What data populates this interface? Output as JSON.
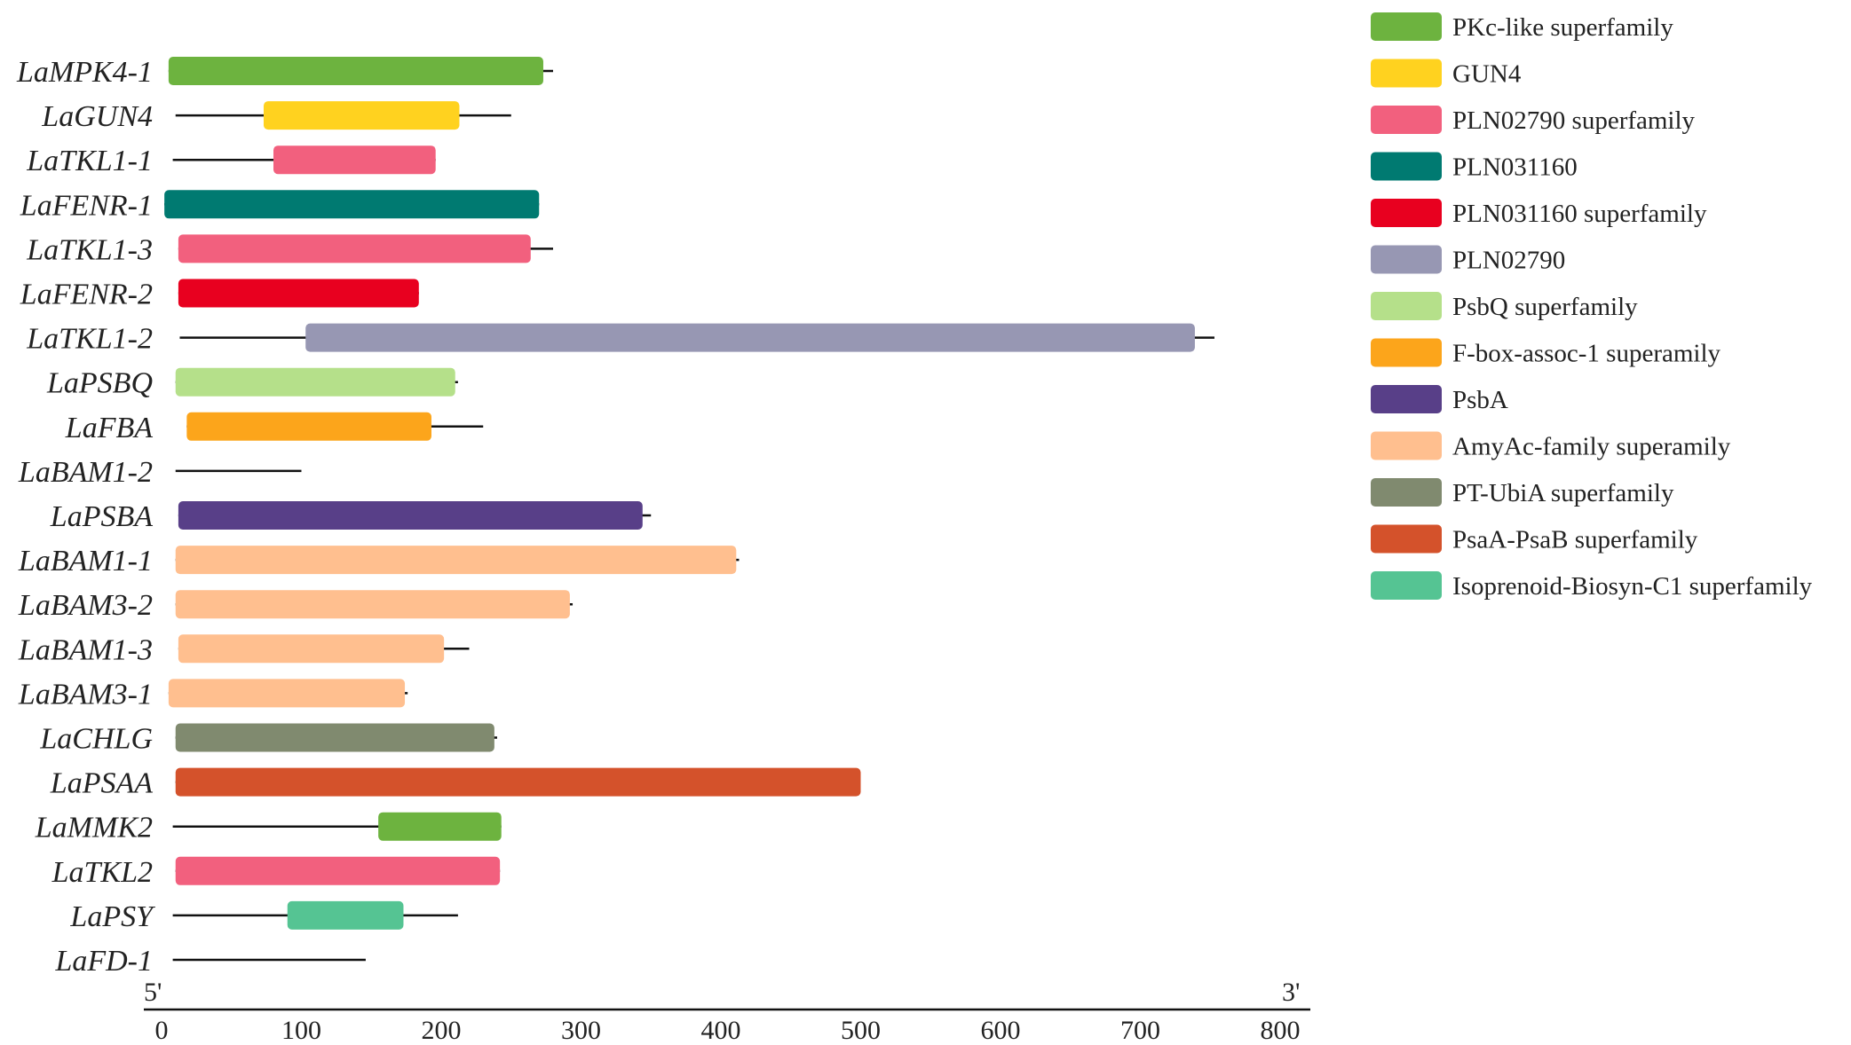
{
  "colors": {
    "PKc-like superfamily": "#6db33f",
    "GUN4": "#ffd21f",
    "PLN02790 superfamily": "#f2607e",
    "PLN031160": "#007a71",
    "PLN031160 superfamily": "#e8001f",
    "PLN02790": "#9797b3",
    "PsbQ superfamily": "#b5e08a",
    "F-box-assoc-1 superamily": "#fca51b",
    "PsbA": "#583f88",
    "AmyAc-family superamily": "#ffbf8f",
    "PT-UbiA superfamily": "#808a6f",
    "PsaA-PsaB superfamily": "#d4522b",
    "Isoprenoid-Biosyn-C1 superfamily": "#55c493"
  },
  "legend": [
    {
      "label": "PKc-like superfamily",
      "domain": "PKc-like superfamily"
    },
    {
      "label": "GUN4",
      "domain": "GUN4"
    },
    {
      "label": "PLN02790 superfamily",
      "domain": "PLN02790 superfamily"
    },
    {
      "label": "PLN031160",
      "domain": "PLN031160"
    },
    {
      "label": "PLN031160  superfamily",
      "domain": "PLN031160 superfamily"
    },
    {
      "label": "PLN02790",
      "domain": "PLN02790"
    },
    {
      "label": "PsbQ superfamily",
      "domain": "PsbQ superfamily"
    },
    {
      "label": "F-box-assoc-1 superamily",
      "domain": "F-box-assoc-1 superamily"
    },
    {
      "label": "PsbA",
      "domain": "PsbA"
    },
    {
      "label": "AmyAc-family superamily",
      "domain": "AmyAc-family superamily"
    },
    {
      "label": "PT-UbiA superfamily",
      "domain": "PT-UbiA superfamily"
    },
    {
      "label": "PsaA-PsaB superfamily",
      "domain": "PsaA-PsaB superfamily"
    },
    {
      "label": "Isoprenoid-Biosyn-C1 superfamily",
      "domain": "Isoprenoid-Biosyn-C1 superfamily"
    }
  ],
  "genes": [
    {
      "name": "LaMPK4-1",
      "line_start": 5,
      "line_end": 280,
      "domain_start": 5,
      "domain_end": 273,
      "domain": "PKc-like superfamily"
    },
    {
      "name": "LaGUN4",
      "line_start": 10,
      "line_end": 250,
      "domain_start": 73,
      "domain_end": 213,
      "domain": "GUN4"
    },
    {
      "name": "LaTKL1-1",
      "line_start": 8,
      "line_end": 196,
      "domain_start": 80,
      "domain_end": 196,
      "domain": "PLN02790 superfamily"
    },
    {
      "name": "LaFENR-1",
      "line_start": 2,
      "line_end": 270,
      "domain_start": 2,
      "domain_end": 270,
      "domain": "PLN031160"
    },
    {
      "name": "LaTKL1-3",
      "line_start": 12,
      "line_end": 280,
      "domain_start": 12,
      "domain_end": 264,
      "domain": "PLN02790 superfamily"
    },
    {
      "name": "LaFENR-2",
      "line_start": 12,
      "line_end": 184,
      "domain_start": 12,
      "domain_end": 184,
      "domain": "PLN031160 superfamily"
    },
    {
      "name": "LaTKL1-2",
      "line_start": 13,
      "line_end": 753,
      "domain_start": 103,
      "domain_end": 739,
      "domain": "PLN02790"
    },
    {
      "name": "LaPSBQ",
      "line_start": 10,
      "line_end": 212,
      "domain_start": 10,
      "domain_end": 210,
      "domain": "PsbQ superfamily"
    },
    {
      "name": "LaFBA",
      "line_start": 18,
      "line_end": 230,
      "domain_start": 18,
      "domain_end": 193,
      "domain": "F-box-assoc-1 superamily"
    },
    {
      "name": "LaBAM1-2",
      "line_start": 10,
      "line_end": 100
    },
    {
      "name": "LaPSBA",
      "line_start": 12,
      "line_end": 350,
      "domain_start": 12,
      "domain_end": 344,
      "domain": "PsbA"
    },
    {
      "name": "LaBAM1-1",
      "line_start": 10,
      "line_end": 413,
      "domain_start": 10,
      "domain_end": 411,
      "domain": "AmyAc-family superamily"
    },
    {
      "name": "LaBAM3-2",
      "line_start": 10,
      "line_end": 294,
      "domain_start": 10,
      "domain_end": 292,
      "domain": "AmyAc-family superamily"
    },
    {
      "name": "LaBAM1-3",
      "line_start": 12,
      "line_end": 220,
      "domain_start": 12,
      "domain_end": 202,
      "domain": "AmyAc-family superamily"
    },
    {
      "name": "LaBAM3-1",
      "line_start": 5,
      "line_end": 176,
      "domain_start": 5,
      "domain_end": 174,
      "domain": "AmyAc-family superamily"
    },
    {
      "name": "LaCHLG",
      "line_start": 10,
      "line_end": 240,
      "domain_start": 10,
      "domain_end": 238,
      "domain": "PT-UbiA superfamily"
    },
    {
      "name": "LaPSAA",
      "line_start": 10,
      "line_end": 500,
      "domain_start": 10,
      "domain_end": 500,
      "domain": "PsaA-PsaB superfamily"
    },
    {
      "name": "LaMMK2",
      "line_start": 8,
      "line_end": 243,
      "domain_start": 155,
      "domain_end": 243,
      "domain": "PKc-like superfamily"
    },
    {
      "name": "LaTKL2",
      "line_start": 10,
      "line_end": 242,
      "domain_start": 10,
      "domain_end": 242,
      "domain": "PLN02790 superfamily"
    },
    {
      "name": "LaPSY",
      "line_start": 8,
      "line_end": 212,
      "domain_start": 90,
      "domain_end": 173,
      "domain": "Isoprenoid-Biosyn-C1 superfamily"
    },
    {
      "name": "LaFD-1",
      "line_start": 8,
      "line_end": 146
    }
  ],
  "axis": {
    "min": 0,
    "max": 800,
    "ticks": [
      0,
      100,
      200,
      300,
      400,
      500,
      600,
      700,
      800
    ],
    "tick_labels": [
      "0",
      "100",
      "200",
      "300",
      "400",
      "500",
      "600",
      "700",
      "800"
    ],
    "left_end_label": "5'",
    "right_end_label": "3'"
  }
}
